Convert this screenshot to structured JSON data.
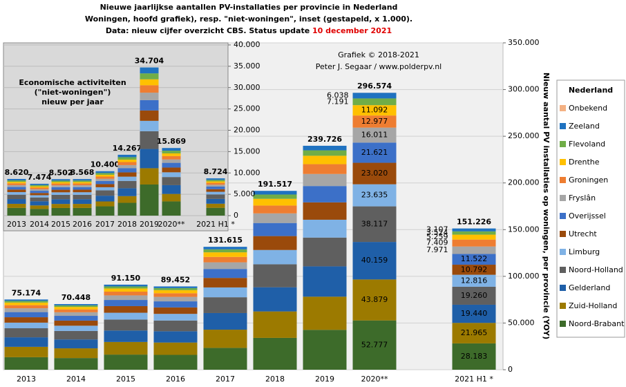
{
  "chart_data": [
    {
      "type": "stacked-bar",
      "title": [
        "Nieuwe jaarlijkse aantallen PV-installaties per provincie in Nederland",
        "Woningen, hoofd grafiek), resp. \"niet-woningen\", inset (gestapeld, x 1.000).",
        "Data: nieuw cijfer overzicht CBS. Status update ",
        "10 december 2021"
      ],
      "credit": [
        "Grafiek © 2018-2021",
        "Peter J. Segaar / www.polderpv.nl"
      ],
      "y_label": "Nieuw aantal PV installaties op woningen, per provincie (YOY)",
      "legend_title": "Nederland",
      "categories": [
        "2013",
        "2014",
        "2015",
        "2016",
        "2017",
        "2018",
        "2019",
        "2020**",
        "2021 H1 *"
      ],
      "ylim": [
        0,
        350000
      ],
      "yticks": [
        0,
        {
          "value": 50000,
          "label": "50.000"
        },
        {
          "value": 100000,
          "label": "100.000"
        },
        {
          "value": 150000,
          "label": "150.000"
        },
        {
          "value": 200000,
          "label": "200.000"
        },
        {
          "value": 250000,
          "label": "250.000"
        },
        {
          "value": 300000,
          "label": "300.000"
        },
        {
          "value": 350000,
          "label": "350.000"
        }
      ],
      "grid": true,
      "totals": {
        "values": [
          75174,
          70448,
          91150,
          89452,
          131615,
          191517,
          239726,
          296574,
          151226
        ],
        "value_labels": [
          "75.174",
          "70.448",
          "91.150",
          "89.452",
          "131.615",
          "191.517",
          "239.726",
          "296.574",
          "151.226"
        ]
      },
      "series": [
        {
          "name": "Noord-Brabant",
          "color": "#3d6b2a",
          "values": [
            13400,
            12500,
            16200,
            15900,
            23400,
            34100,
            42700,
            52777,
            28183
          ],
          "value_labels": [
            null,
            null,
            null,
            null,
            null,
            null,
            null,
            "52.777",
            "28.183"
          ]
        },
        {
          "name": "Zuid-Holland",
          "color": "#9c7a00",
          "values": [
            11100,
            10400,
            13500,
            13200,
            19500,
            28300,
            35500,
            43879,
            21965
          ],
          "value_labels": [
            null,
            null,
            null,
            null,
            null,
            null,
            null,
            "43.879",
            "21.965"
          ]
        },
        {
          "name": "Gelderland",
          "color": "#1f5fa8",
          "values": [
            10200,
            9500,
            12300,
            12100,
            17800,
            25900,
            32500,
            40159,
            19440
          ],
          "value_labels": [
            null,
            null,
            null,
            null,
            null,
            null,
            null,
            "40.159",
            "19.440"
          ]
        },
        {
          "name": "Noord-Holland",
          "color": "#5f5f5f",
          "values": [
            9700,
            9100,
            11700,
            11500,
            16900,
            24600,
            30800,
            38117,
            19260
          ],
          "value_labels": [
            null,
            null,
            null,
            null,
            null,
            null,
            null,
            "38.117",
            "19.260"
          ]
        },
        {
          "name": "Limburg",
          "color": "#7fb2e5",
          "values": [
            6000,
            5600,
            7300,
            7100,
            10500,
            15300,
            19100,
            23635,
            12816
          ],
          "value_labels": [
            null,
            null,
            null,
            null,
            null,
            null,
            null,
            "23.635",
            "12.816"
          ]
        },
        {
          "name": "Utrecht",
          "color": "#9a4a0b",
          "values": [
            5800,
            5500,
            7100,
            6900,
            10200,
            14900,
            18600,
            23020,
            10792
          ],
          "value_labels": [
            null,
            null,
            null,
            null,
            null,
            null,
            null,
            "23.020",
            "10.792"
          ]
        },
        {
          "name": "Overijssel",
          "color": "#3c70c8",
          "values": [
            5500,
            5100,
            6600,
            6500,
            9600,
            14000,
            17500,
            21621,
            11522
          ],
          "value_labels": [
            null,
            null,
            null,
            null,
            null,
            null,
            null,
            "21.621",
            "11.522"
          ]
        },
        {
          "name": "Fryslân",
          "color": "#a6a6a6",
          "values": [
            4100,
            3800,
            4900,
            4800,
            7100,
            10300,
            12900,
            16011,
            7971
          ],
          "value_labels": [
            null,
            null,
            null,
            null,
            null,
            null,
            null,
            "16.011",
            "7.971"
          ]
        },
        {
          "name": "Groningen",
          "color": "#ee7d31",
          "values": [
            3300,
            3100,
            4000,
            3900,
            5800,
            8400,
            10500,
            12977,
            7409
          ],
          "value_labels": [
            null,
            null,
            null,
            null,
            null,
            null,
            null,
            "12.977",
            "7.409"
          ]
        },
        {
          "name": "Drenthe",
          "color": "#ffc000",
          "values": [
            2800,
            2600,
            3400,
            3300,
            4900,
            7200,
            9000,
            11092,
            5259
          ],
          "value_labels": [
            null,
            null,
            null,
            null,
            null,
            null,
            null,
            "11.092",
            "5.259"
          ]
        },
        {
          "name": "Flevoland",
          "color": "#70ad47",
          "values": [
            1800,
            1700,
            2200,
            2200,
            3200,
            4600,
            5800,
            7191,
            3524
          ],
          "value_labels": [
            null,
            null,
            null,
            null,
            null,
            null,
            null,
            "7.191",
            "3.524"
          ]
        },
        {
          "name": "Zeeland",
          "color": "#1f72c0",
          "values": [
            1500,
            1400,
            1900,
            1800,
            2700,
            3900,
            4900,
            6038,
            3107
          ],
          "value_labels": [
            null,
            null,
            null,
            null,
            null,
            null,
            null,
            "6.038",
            "3.107"
          ]
        },
        {
          "name": "Onbekend",
          "color": "#f4b183",
          "values": [
            0,
            0,
            0,
            0,
            0,
            0,
            0,
            57,
            0
          ],
          "value_labels": [
            null,
            null,
            null,
            null,
            null,
            null,
            null,
            null,
            null
          ]
        }
      ]
    },
    {
      "type": "stacked-bar",
      "title": [
        "Economische activiteiten",
        "(\"niet-woningen\")",
        "nieuw per jaar"
      ],
      "categories": [
        "2013",
        "2014",
        "2015",
        "2016",
        "2017",
        "2018",
        "2019",
        "2020**",
        "2021 H1 *"
      ],
      "ylim": [
        0,
        40000
      ],
      "yticks": [
        0,
        {
          "value": 5000,
          "label": "5.000"
        },
        {
          "value": 10000,
          "label": "10.000"
        },
        {
          "value": 15000,
          "label": "15.000"
        },
        {
          "value": 20000,
          "label": "20.000"
        },
        {
          "value": 25000,
          "label": "25.000"
        },
        {
          "value": 30000,
          "label": "30.000"
        },
        {
          "value": 35000,
          "label": "35.000"
        },
        {
          "value": 40000,
          "label": "40.000"
        }
      ],
      "grid": true,
      "totals": {
        "values": [
          8620,
          7474,
          8502,
          8568,
          10400,
          14267,
          34704,
          15869,
          8724
        ],
        "value_labels": [
          "8.620",
          "7.474",
          "8.502",
          "8.568",
          "10.400",
          "14.267",
          "34.704",
          "15.869",
          "8.724"
        ]
      },
      "series": [
        {
          "name": "Noord-Brabant",
          "color": "#3d6b2a",
          "values": [
            1810,
            1570,
            1790,
            1800,
            2180,
            3000,
            7290,
            3330,
            1830
          ]
        },
        {
          "name": "Zuid-Holland",
          "color": "#9c7a00",
          "values": [
            950,
            820,
            940,
            940,
            1140,
            1570,
            3820,
            1750,
            960
          ]
        },
        {
          "name": "Gelderland",
          "color": "#1f5fa8",
          "values": [
            1120,
            970,
            1110,
            1110,
            1350,
            1850,
            4510,
            2060,
            1130
          ]
        },
        {
          "name": "Noord-Holland",
          "color": "#5f5f5f",
          "values": [
            1030,
            900,
            1020,
            1030,
            1250,
            1710,
            4160,
            1900,
            1050
          ]
        },
        {
          "name": "Limburg",
          "color": "#7fb2e5",
          "values": [
            600,
            520,
            600,
            600,
            730,
            1000,
            2430,
            1110,
            610
          ]
        },
        {
          "name": "Utrecht",
          "color": "#9a4a0b",
          "values": [
            600,
            520,
            600,
            600,
            730,
            1000,
            2430,
            1110,
            610
          ]
        },
        {
          "name": "Overijssel",
          "color": "#3c70c8",
          "values": [
            600,
            520,
            600,
            600,
            730,
            1000,
            2430,
            1110,
            610
          ]
        },
        {
          "name": "Fryslân",
          "color": "#a6a6a6",
          "values": [
            430,
            370,
            430,
            430,
            520,
            710,
            1740,
            790,
            440
          ]
        },
        {
          "name": "Groningen",
          "color": "#ee7d31",
          "values": [
            430,
            370,
            430,
            430,
            520,
            710,
            1740,
            790,
            440
          ]
        },
        {
          "name": "Drenthe",
          "color": "#ffc000",
          "values": [
            340,
            300,
            340,
            340,
            420,
            570,
            1390,
            630,
            350
          ]
        },
        {
          "name": "Flevoland",
          "color": "#70ad47",
          "values": [
            340,
            300,
            340,
            340,
            420,
            570,
            1390,
            630,
            350
          ]
        },
        {
          "name": "Zeeland",
          "color": "#1f72c0",
          "values": [
            340,
            300,
            340,
            340,
            420,
            570,
            1390,
            630,
            350
          ]
        },
        {
          "name": "Onbekend",
          "color": "#f4b183",
          "values": [
            0,
            0,
            0,
            0,
            0,
            0,
            0,
            0,
            0
          ]
        }
      ]
    }
  ]
}
